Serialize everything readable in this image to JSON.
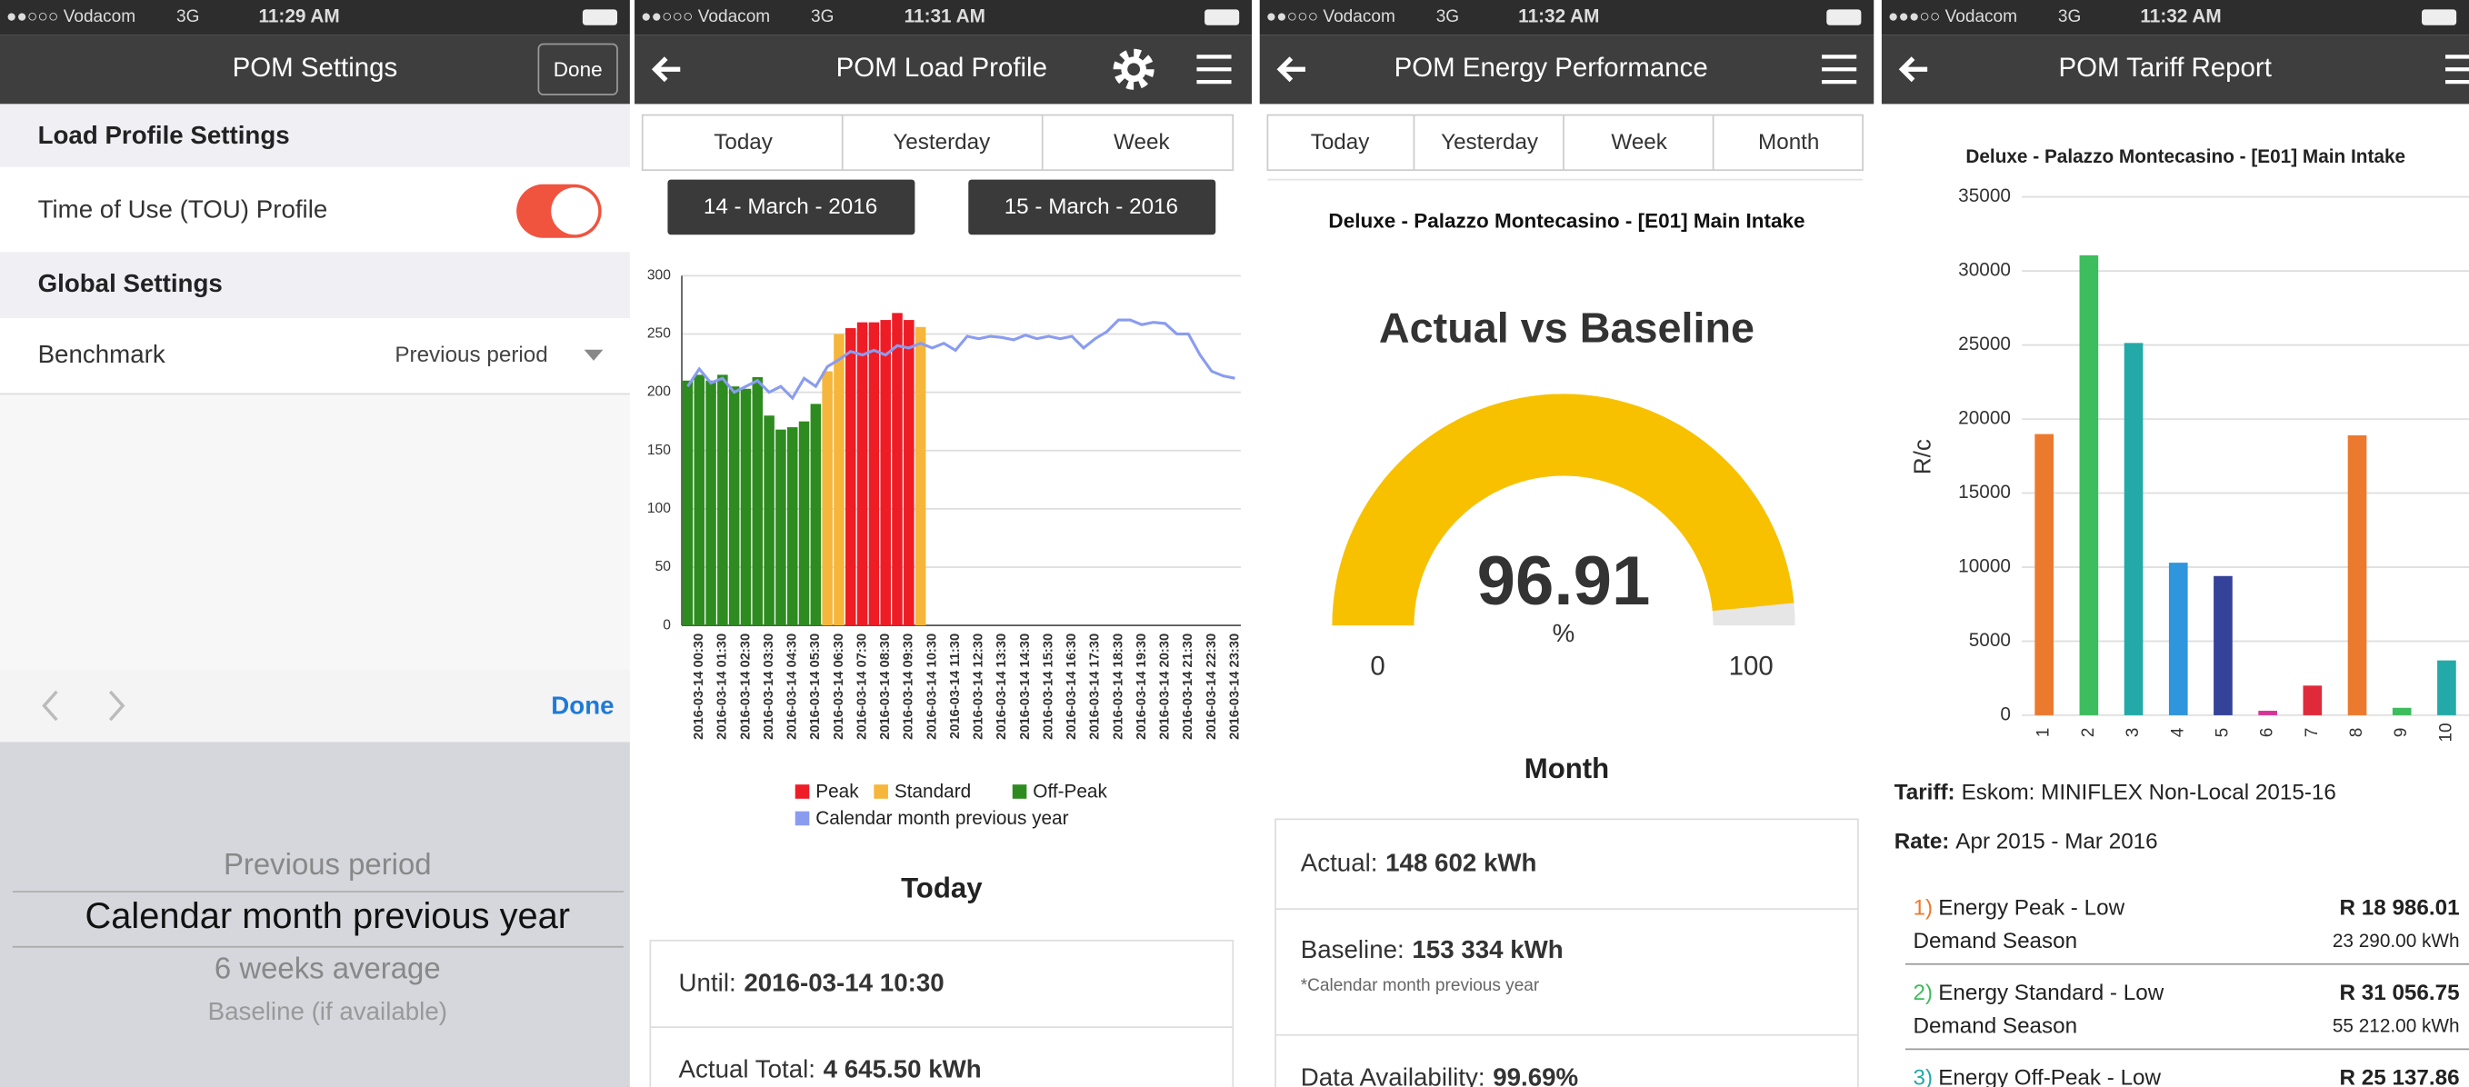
{
  "status_bars": [
    {
      "carrier": "●●○○○ Vodacom",
      "network": "3G",
      "time": "11:29 AM"
    },
    {
      "carrier": "●●○○○ Vodacom",
      "network": "3G",
      "time": "11:31 AM"
    },
    {
      "carrier": "●●○○○ Vodacom",
      "network": "3G",
      "time": "11:32 AM"
    },
    {
      "carrier": "●●●○○ Vodacom",
      "network": "3G",
      "time": "11:32 AM"
    }
  ],
  "settings": {
    "title": "POM Settings",
    "done": "Done",
    "sections": [
      {
        "title": "Load Profile Settings",
        "rows": [
          {
            "label": "Time of Use (TOU) Profile",
            "toggle": true
          }
        ]
      },
      {
        "title": "Global Settings",
        "rows": [
          {
            "label": "Benchmark",
            "value": "Previous period"
          }
        ]
      }
    ],
    "picker": {
      "done": "Done",
      "options": [
        "Previous period",
        "Calendar month previous year",
        "6 weeks average",
        "Baseline (if available)"
      ],
      "selected": 1
    }
  },
  "load_profile": {
    "title": "POM Load Profile",
    "tabs": [
      "Today",
      "Yesterday",
      "Week"
    ],
    "dates": [
      "14 - March - 2016",
      "15 - March - 2016"
    ],
    "period": "Today",
    "summary": [
      {
        "label": "Until:",
        "value": "2016-03-14 10:30"
      },
      {
        "label": "Actual Total:",
        "value": "4 645.50 kWh"
      }
    ]
  },
  "energy": {
    "title": "POM Energy Performance",
    "tabs": [
      "Today",
      "Yesterday",
      "Week",
      "Month"
    ],
    "period": "Month",
    "summary": [
      {
        "label": "Actual:",
        "value": "148 602 kWh"
      },
      {
        "label": "Baseline:",
        "value": "153 334 kWh",
        "note": "*Calendar month previous year"
      },
      {
        "label": "Data Availability:",
        "value": "99.69%"
      }
    ]
  },
  "tariff": {
    "title": "POM Tariff Report",
    "tariff": {
      "label": "Tariff:",
      "value": "Eskom: MINIFLEX Non-Local 2015-16"
    },
    "rate": {
      "label": "Rate:",
      "value": "Apr 2015 - Mar 2016"
    },
    "items": [
      {
        "number": "1)",
        "name": "Energy Peak - Low",
        "season": "Demand Season",
        "amount": "R 18 986.01",
        "energy": "23 290.00 kWh"
      },
      {
        "number": "2)",
        "name": "Energy Standard - Low",
        "season": "Demand Season",
        "amount": "R 31 056.75",
        "energy": "55 212.00 kWh"
      },
      {
        "number": "3)",
        "name": "Energy Off-Peak - Low",
        "amount": "R 25 137.86"
      }
    ]
  },
  "chart_data": [
    {
      "type": "bar",
      "categories": [
        null,
        "2016-03-14 00:30",
        null,
        "2016-03-14 01:30",
        null,
        "2016-03-14 02:30",
        null,
        "2016-03-14 03:30",
        null,
        "2016-03-14 04:30",
        null,
        "2016-03-14 05:30",
        null,
        "2016-03-14 06:30",
        null,
        "2016-03-14 07:30",
        null,
        "2016-03-14 08:30",
        null,
        "2016-03-14 09:30",
        null,
        "2016-03-14 10:30",
        null,
        "2016-03-14 11:30",
        null,
        "2016-03-14 12:30",
        null,
        "2016-03-14 13:30",
        null,
        "2016-03-14 14:30",
        null,
        "2016-03-14 15:30",
        null,
        "2016-03-14 16:30",
        null,
        "2016-03-14 17:30",
        null,
        "2016-03-14 18:30",
        null,
        "2016-03-14 19:30",
        null,
        "2016-03-14 20:30",
        null,
        "2016-03-14 21:30",
        null,
        "2016-03-14 22:30",
        null,
        "2016-03-14 23:30"
      ],
      "series": [
        {
          "name": "Peak",
          "color": "#ee1c25",
          "values": [
            null,
            null,
            null,
            null,
            null,
            null,
            null,
            null,
            null,
            null,
            null,
            null,
            null,
            null,
            255,
            260,
            260,
            262,
            268,
            262,
            null,
            null,
            null,
            null,
            null,
            null,
            null,
            null,
            null,
            null,
            null,
            null,
            null,
            null,
            null,
            null,
            null,
            null,
            null,
            null,
            null,
            null,
            null,
            null,
            null,
            null,
            null,
            null
          ]
        },
        {
          "name": "Standard",
          "color": "#f5b63b",
          "values": [
            null,
            null,
            null,
            null,
            null,
            null,
            null,
            null,
            null,
            null,
            null,
            null,
            218,
            250,
            null,
            null,
            null,
            null,
            null,
            null,
            256,
            null,
            null,
            null,
            null,
            null,
            null,
            null,
            null,
            null,
            null,
            null,
            null,
            null,
            null,
            null,
            null,
            null,
            null,
            null,
            null,
            null,
            null,
            null,
            null,
            null,
            null,
            null
          ]
        },
        {
          "name": "Off-Peak",
          "color": "#2e8b1f",
          "values": [
            210,
            215,
            210,
            215,
            205,
            203,
            213,
            180,
            168,
            170,
            175,
            190,
            null,
            null,
            null,
            null,
            null,
            null,
            null,
            null,
            null,
            null,
            null,
            null,
            null,
            null,
            null,
            null,
            null,
            null,
            null,
            null,
            null,
            null,
            null,
            null,
            null,
            null,
            null,
            null,
            null,
            null,
            null,
            null,
            null,
            null,
            null,
            null
          ]
        },
        {
          "name": "Calendar month previous year",
          "color": "#8a9cf0",
          "type": "line",
          "values": [
            205,
            220,
            208,
            212,
            200,
            205,
            210,
            200,
            205,
            195,
            212,
            205,
            222,
            228,
            235,
            232,
            236,
            232,
            240,
            238,
            242,
            238,
            242,
            236,
            248,
            246,
            248,
            247,
            245,
            249,
            246,
            248,
            246,
            248,
            238,
            246,
            252,
            262,
            262,
            258,
            260,
            259,
            250,
            250,
            232,
            218,
            214,
            212
          ]
        }
      ],
      "ylim": [
        0,
        300
      ],
      "yticks": [
        0,
        50,
        100,
        150,
        200,
        250,
        300
      ],
      "grid": true,
      "legend": "bottom"
    },
    {
      "type": "gauge",
      "subtitle": "Deluxe - Palazzo Montecasino - [E01] Main Intake",
      "title": "Actual vs Baseline",
      "value": 96.91,
      "unit": "%",
      "min": 0,
      "max": 100,
      "color": "#f7c100"
    },
    {
      "type": "bar",
      "title": "Deluxe - Palazzo Montecasino - [E01] Main Intake",
      "y_label": "R/c",
      "categories": [
        "1",
        "2",
        "3",
        "4",
        "5",
        "6",
        "7",
        "8",
        "9",
        "10"
      ],
      "values": [
        18986.01,
        31056.75,
        25137.86,
        10300,
        9400,
        300,
        2000,
        18900,
        500,
        3700
      ],
      "colors": [
        "#ec7a2e",
        "#3dbd5d",
        "#23aaa8",
        "#2f95dc",
        "#35429a",
        "#d63595",
        "#e02a3c",
        "#ec7a2e",
        "#3dbd5d",
        "#23aaa8"
      ],
      "ylim": [
        0,
        35000
      ],
      "yticks": [
        0,
        5000,
        10000,
        15000,
        20000,
        25000,
        30000,
        35000
      ],
      "grid": true
    }
  ]
}
